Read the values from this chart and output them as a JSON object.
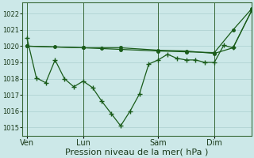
{
  "background_color": "#cce8e8",
  "grid_color": "#aacfcf",
  "line_color": "#1a5c1a",
  "xlabel": "Pression niveau de la mer( hPa )",
  "xlabel_fontsize": 8,
  "yticks": [
    1015,
    1016,
    1017,
    1018,
    1019,
    1020,
    1021,
    1022
  ],
  "ylim": [
    1014.5,
    1022.7
  ],
  "xtick_labels": [
    "Ven",
    "Lun",
    "Sam",
    "Dim"
  ],
  "xtick_positions": [
    0,
    6,
    14,
    20
  ],
  "vline_positions": [
    0,
    6,
    14,
    20
  ],
  "xlim": [
    -0.5,
    24
  ],
  "series1_x": [
    0,
    3,
    6,
    8,
    10,
    14,
    17,
    20,
    22,
    24
  ],
  "series1_y": [
    1020.0,
    1019.95,
    1019.9,
    1019.85,
    1019.8,
    1019.7,
    1019.65,
    1019.6,
    1021.0,
    1022.3
  ],
  "series2_x": [
    0,
    1,
    2,
    3,
    4,
    5,
    6,
    7,
    8,
    9,
    10,
    11,
    12,
    13,
    14,
    15,
    16,
    17,
    18,
    19,
    20,
    21,
    22,
    24
  ],
  "series2_y": [
    1020.5,
    1018.05,
    1017.75,
    1019.15,
    1018.0,
    1017.5,
    1017.85,
    1017.45,
    1016.6,
    1015.85,
    1015.1,
    1016.0,
    1017.05,
    1018.9,
    1019.15,
    1019.5,
    1019.25,
    1019.15,
    1019.15,
    1019.0,
    1019.0,
    1020.05,
    1019.9,
    1022.2
  ],
  "series3_x": [
    0,
    6,
    10,
    14,
    17,
    20,
    22,
    24
  ],
  "series3_y": [
    1020.0,
    1019.9,
    1019.9,
    1019.75,
    1019.7,
    1019.55,
    1019.9,
    1022.2
  ],
  "marker_size_cross": 3,
  "marker_size_dot": 2.5,
  "line_width": 0.9
}
